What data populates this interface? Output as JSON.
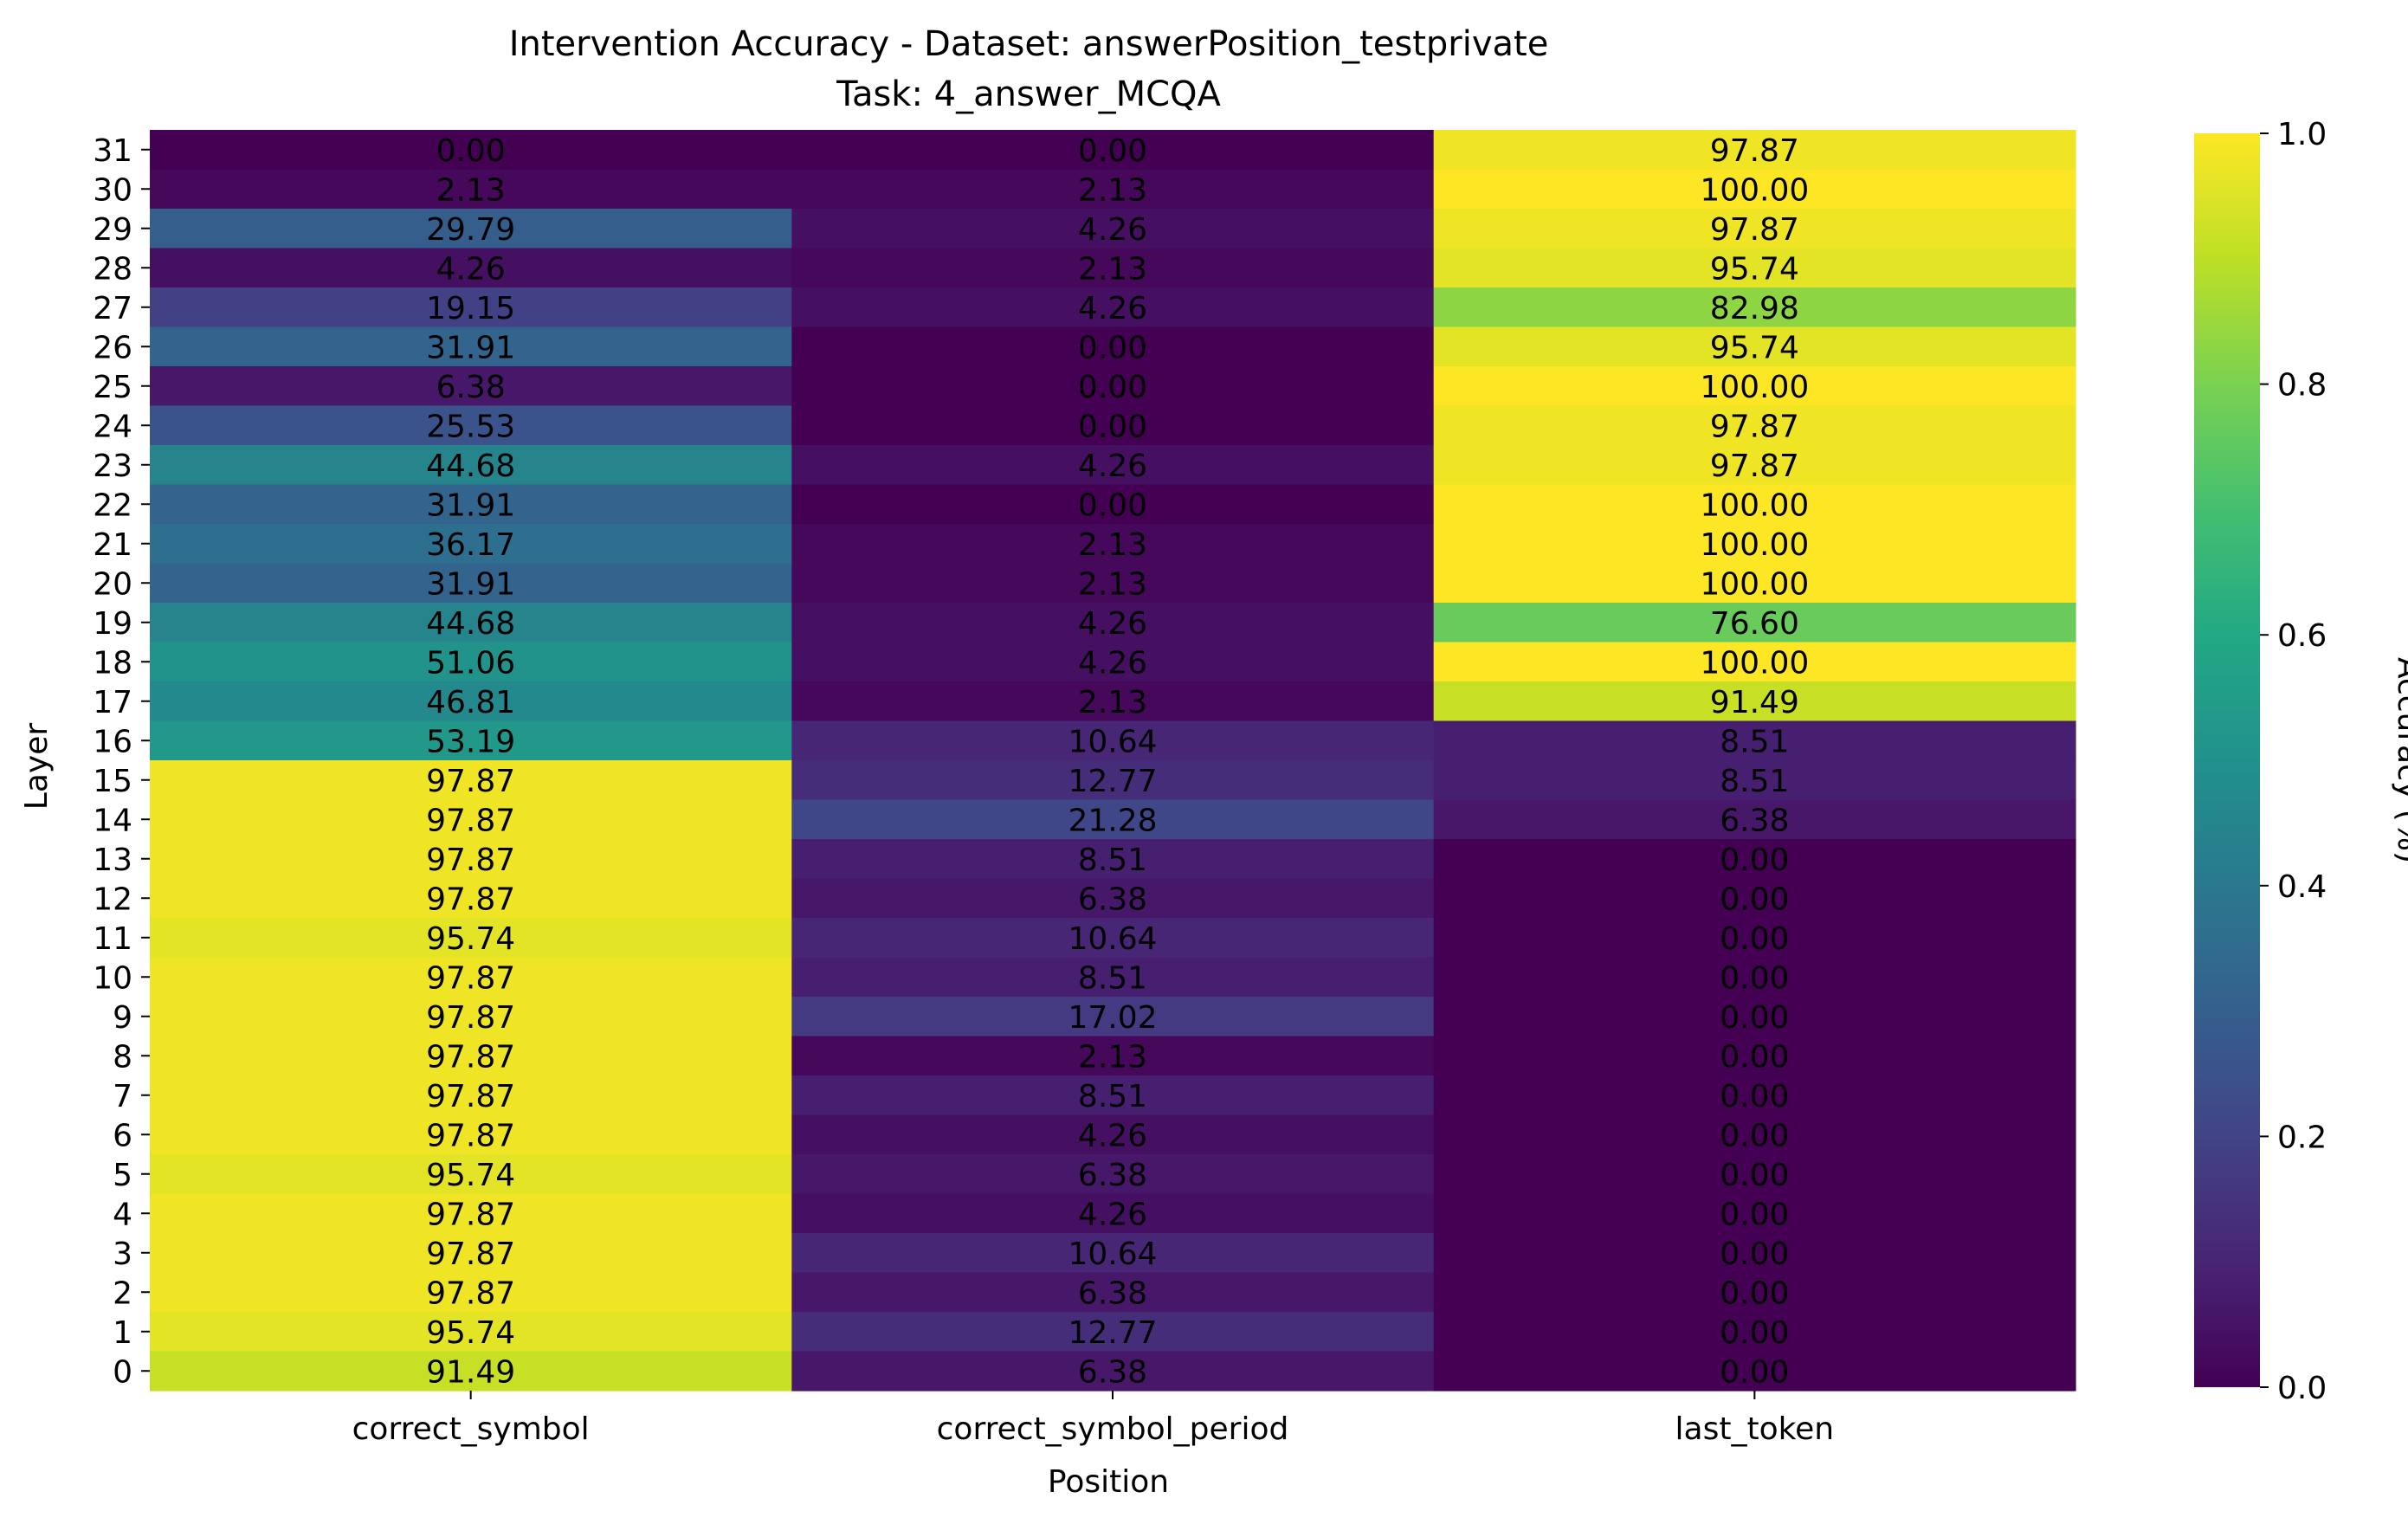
{
  "chart_data": {
    "type": "heatmap",
    "title": "Intervention Accuracy - Dataset: answerPosition_testprivate",
    "subtitle": "Task: 4_answer_MCQA",
    "xlabel": "Position",
    "ylabel": "Layer",
    "colorbar_label": "Accuracy (%)",
    "colormap": "viridis",
    "color_range": [
      0,
      1
    ],
    "colorbar_ticks": [
      "0.0",
      "0.2",
      "0.4",
      "0.6",
      "0.8",
      "1.0"
    ],
    "columns": [
      "correct_symbol",
      "correct_symbol_period",
      "last_token"
    ],
    "rows": [
      "31",
      "30",
      "29",
      "28",
      "27",
      "26",
      "25",
      "24",
      "23",
      "22",
      "21",
      "20",
      "19",
      "18",
      "17",
      "16",
      "15",
      "14",
      "13",
      "12",
      "11",
      "10",
      "9",
      "8",
      "7",
      "6",
      "5",
      "4",
      "3",
      "2",
      "1",
      "0"
    ],
    "values": [
      [
        0.0,
        0.0,
        97.87
      ],
      [
        2.13,
        2.13,
        100.0
      ],
      [
        29.79,
        4.26,
        97.87
      ],
      [
        4.26,
        2.13,
        95.74
      ],
      [
        19.15,
        4.26,
        82.98
      ],
      [
        31.91,
        0.0,
        95.74
      ],
      [
        6.38,
        0.0,
        100.0
      ],
      [
        25.53,
        0.0,
        97.87
      ],
      [
        44.68,
        4.26,
        97.87
      ],
      [
        31.91,
        0.0,
        100.0
      ],
      [
        36.17,
        2.13,
        100.0
      ],
      [
        31.91,
        2.13,
        100.0
      ],
      [
        44.68,
        4.26,
        76.6
      ],
      [
        51.06,
        4.26,
        100.0
      ],
      [
        46.81,
        2.13,
        91.49
      ],
      [
        53.19,
        10.64,
        8.51
      ],
      [
        97.87,
        12.77,
        8.51
      ],
      [
        97.87,
        21.28,
        6.38
      ],
      [
        97.87,
        8.51,
        0.0
      ],
      [
        97.87,
        6.38,
        0.0
      ],
      [
        95.74,
        10.64,
        0.0
      ],
      [
        97.87,
        8.51,
        0.0
      ],
      [
        97.87,
        17.02,
        0.0
      ],
      [
        97.87,
        2.13,
        0.0
      ],
      [
        97.87,
        8.51,
        0.0
      ],
      [
        97.87,
        4.26,
        0.0
      ],
      [
        95.74,
        6.38,
        0.0
      ],
      [
        97.87,
        4.26,
        0.0
      ],
      [
        97.87,
        10.64,
        0.0
      ],
      [
        97.87,
        6.38,
        0.0
      ],
      [
        95.74,
        12.77,
        0.0
      ],
      [
        91.49,
        6.38,
        0.0
      ]
    ]
  }
}
